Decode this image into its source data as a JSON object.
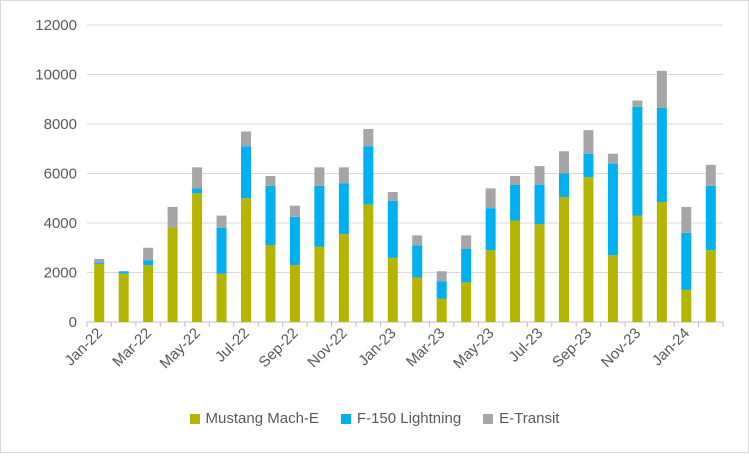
{
  "chart_data": {
    "type": "bar",
    "stacked": true,
    "title": "",
    "xlabel": "",
    "ylabel": "",
    "ylim": [
      0,
      12000
    ],
    "yticks": [
      0,
      2000,
      4000,
      6000,
      8000,
      10000,
      12000
    ],
    "ytick_labels": [
      "0",
      "2000",
      "4000",
      "6000",
      "8000",
      "10000",
      "12000"
    ],
    "grid": "horizontal",
    "legend_position": "bottom",
    "categories": [
      "Jan-22",
      "Feb-22",
      "Mar-22",
      "Apr-22",
      "May-22",
      "Jun-22",
      "Jul-22",
      "Aug-22",
      "Sep-22",
      "Oct-22",
      "Nov-22",
      "Dec-22",
      "Jan-23",
      "Feb-23",
      "Mar-23",
      "Apr-23",
      "May-23",
      "Jun-23",
      "Jul-23",
      "Aug-23",
      "Sep-23",
      "Oct-23",
      "Nov-23",
      "Dec-23",
      "Jan-24",
      "Feb-24"
    ],
    "x_tick_labels": [
      "Jan-22",
      "",
      "Mar-22",
      "",
      "May-22",
      "",
      "Jul-22",
      "",
      "Sep-22",
      "",
      "Nov-22",
      "",
      "Jan-23",
      "",
      "Mar-23",
      "",
      "May-23",
      "",
      "Jul-23",
      "",
      "Sep-23",
      "",
      "Nov-23",
      "",
      "Jan-24",
      ""
    ],
    "series": [
      {
        "name": "Mustang Mach-E",
        "color": "#b5b500",
        "values": [
          2350,
          1950,
          2300,
          3800,
          5200,
          1950,
          5000,
          3100,
          2300,
          3050,
          3550,
          4750,
          2600,
          1800,
          950,
          1600,
          2900,
          4100,
          3950,
          5050,
          5850,
          2700,
          4300,
          4850,
          1300,
          2900
        ]
      },
      {
        "name": "F-150 Lightning",
        "color": "#00b0f0",
        "values": [
          50,
          100,
          200,
          0,
          200,
          1850,
          2100,
          2400,
          1950,
          2450,
          2050,
          2350,
          2300,
          1300,
          700,
          1350,
          1700,
          1450,
          1600,
          950,
          950,
          3700,
          4400,
          3800,
          2300,
          2600
        ]
      },
      {
        "name": "E-Transit",
        "color": "#a6a6a6",
        "values": [
          150,
          0,
          500,
          850,
          850,
          500,
          600,
          400,
          450,
          750,
          650,
          700,
          350,
          400,
          400,
          550,
          800,
          350,
          750,
          900,
          950,
          400,
          250,
          1500,
          1050,
          850
        ]
      }
    ]
  }
}
